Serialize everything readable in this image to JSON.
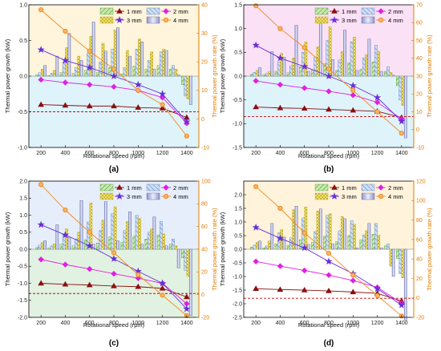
{
  "figure": {
    "shared": {
      "x_ticks": [
        200,
        400,
        600,
        800,
        1000,
        1200,
        1400
      ],
      "xlabel": "Rotational speed (rpm)",
      "ylabel_left": "Thermal power growth (kW)",
      "ylabel_right": "Thermal power growth rate (%)",
      "legend": [
        "1 mm",
        "2 mm",
        "3 mm",
        "4 mm"
      ],
      "colors": {
        "s1": "#8b1010",
        "s2": "#e020e0",
        "s3": "#6a2fd8",
        "s4": "#f08a1c",
        "axis_right": "#e07b00",
        "dash": "#d00000"
      }
    }
  },
  "chart_data": [
    {
      "type": "bar",
      "panel_label": "(a)",
      "x": [
        200,
        300,
        400,
        500,
        600,
        700,
        800,
        900,
        1000,
        1100,
        1200,
        1300,
        1400
      ],
      "ylim": [
        -1.0,
        1.0
      ],
      "y_ticks": [
        -1.0,
        -0.5,
        0.0,
        0.5,
        1.0
      ],
      "y2lim": [
        -10,
        40
      ],
      "y2_ticks": [
        -10,
        0,
        10,
        20,
        30,
        40
      ],
      "zero_rate_kw": -0.5,
      "bar_series": [
        {
          "name": "1 mm",
          "values": [
            0.02,
            0.01,
            0.05,
            0.04,
            0.08,
            0.05,
            0.12,
            0.03,
            0.14,
            0.1,
            0.15,
            0.1,
            -0.12
          ]
        },
        {
          "name": "2 mm",
          "values": [
            0.05,
            0.04,
            0.2,
            0.12,
            0.32,
            0.2,
            0.38,
            0.12,
            0.38,
            0.22,
            0.34,
            0.15,
            -0.28
          ]
        },
        {
          "name": "3 mm",
          "values": [
            0.1,
            0.08,
            0.4,
            0.28,
            0.56,
            0.46,
            0.65,
            0.36,
            0.52,
            0.34,
            0.38,
            0.1,
            -0.32
          ]
        },
        {
          "name": "4 mm",
          "values": [
            0.15,
            0.28,
            0.6,
            0.22,
            0.76,
            0.35,
            0.68,
            0.28,
            0.48,
            0.1,
            0.36,
            0.02,
            -0.4
          ]
        }
      ],
      "line_series": [
        {
          "name": "1 mm",
          "x": [
            200,
            400,
            600,
            800,
            1000,
            1200,
            1400
          ],
          "values": [
            -0.4,
            -0.41,
            -0.42,
            -0.42,
            -0.44,
            -0.45,
            -0.58
          ]
        },
        {
          "name": "2 mm",
          "x": [
            200,
            400,
            600,
            800,
            1000,
            1200,
            1400
          ],
          "values": [
            -0.05,
            -0.09,
            -0.12,
            -0.15,
            -0.2,
            -0.3,
            -0.66
          ]
        },
        {
          "name": "3 mm",
          "x": [
            200,
            400,
            600,
            800,
            1000,
            1200,
            1400
          ],
          "values": [
            0.37,
            0.22,
            0.12,
            0.0,
            -0.12,
            -0.25,
            -0.64
          ]
        },
        {
          "name": "4 mm",
          "x": [
            200,
            400,
            600,
            800,
            1000,
            1200,
            1400
          ],
          "values": [
            0.93,
            0.63,
            0.35,
            0.1,
            -0.2,
            -0.4,
            -0.84
          ]
        }
      ]
    },
    {
      "type": "bar",
      "panel_label": "(b)",
      "x": [
        200,
        300,
        400,
        500,
        600,
        700,
        800,
        900,
        1000,
        1100,
        1200,
        1300,
        1400
      ],
      "ylim": [
        -1.5,
        1.5
      ],
      "y_ticks": [
        -1.5,
        -1.0,
        -0.5,
        0.0,
        0.5,
        1.0,
        1.5
      ],
      "y2lim": [
        -10,
        70
      ],
      "y2_ticks": [
        -10,
        0,
        10,
        20,
        30,
        40,
        50,
        60,
        70
      ],
      "zero_rate_kw": -0.85,
      "bar_series": [
        {
          "name": "1 mm",
          "values": [
            0.04,
            0.03,
            0.1,
            0.07,
            0.2,
            0.12,
            0.26,
            0.12,
            0.28,
            0.14,
            0.3,
            0.1,
            -0.2
          ]
        },
        {
          "name": "2 mm",
          "values": [
            0.08,
            0.06,
            0.3,
            0.22,
            0.5,
            0.4,
            0.75,
            0.34,
            0.72,
            0.38,
            0.65,
            0.2,
            -0.5
          ]
        },
        {
          "name": "3 mm",
          "values": [
            0.12,
            0.1,
            0.48,
            0.38,
            0.72,
            0.62,
            1.04,
            0.52,
            0.82,
            0.45,
            0.52,
            0.08,
            -0.62
          ]
        },
        {
          "name": "4 mm",
          "values": [
            0.18,
            0.52,
            0.4,
            1.07,
            0.1,
            1.2,
            0.35,
            0.97,
            0.12,
            0.78,
            0.1,
            0.02,
            -1.3
          ]
        }
      ],
      "line_series": [
        {
          "name": "1 mm",
          "x": [
            200,
            400,
            600,
            800,
            1000,
            1200,
            1400
          ],
          "values": [
            -0.65,
            -0.67,
            -0.68,
            -0.7,
            -0.72,
            -0.74,
            -0.87
          ]
        },
        {
          "name": "2 mm",
          "x": [
            200,
            400,
            600,
            800,
            1000,
            1200,
            1400
          ],
          "values": [
            -0.1,
            -0.18,
            -0.25,
            -0.32,
            -0.4,
            -0.55,
            -0.9
          ]
        },
        {
          "name": "3 mm",
          "x": [
            200,
            400,
            600,
            800,
            1000,
            1200,
            1400
          ],
          "values": [
            0.65,
            0.38,
            0.2,
            0.0,
            -0.2,
            -0.45,
            -0.95
          ]
        },
        {
          "name": "4 mm",
          "x": [
            200,
            400,
            600,
            800,
            1000,
            1200,
            1400
          ],
          "values": [
            1.48,
            1.0,
            0.6,
            0.15,
            -0.3,
            -0.75,
            -1.2
          ]
        }
      ]
    },
    {
      "type": "bar",
      "panel_label": "(c)",
      "x": [
        200,
        300,
        400,
        500,
        600,
        700,
        800,
        900,
        1000,
        1100,
        1200,
        1300,
        1400
      ],
      "ylim": [
        -2.0,
        2.0
      ],
      "y_ticks": [
        -2.0,
        -1.5,
        -1.0,
        -0.5,
        0.0,
        0.5,
        1.0,
        1.5,
        2.0
      ],
      "y2lim": [
        -20,
        100
      ],
      "y2_ticks": [
        -20,
        0,
        20,
        40,
        60,
        80,
        100
      ],
      "zero_rate_kw": -1.3,
      "bar_series": [
        {
          "name": "1 mm",
          "values": [
            0.05,
            0.04,
            0.15,
            0.1,
            0.28,
            0.18,
            0.36,
            0.2,
            0.38,
            0.3,
            0.42,
            0.15,
            -0.25
          ]
        },
        {
          "name": "2 mm",
          "values": [
            0.12,
            0.1,
            0.42,
            0.3,
            0.8,
            0.55,
            1.05,
            0.55,
            1.0,
            0.5,
            0.82,
            0.3,
            -0.62
          ]
        },
        {
          "name": "3 mm",
          "values": [
            0.2,
            0.16,
            0.6,
            0.5,
            1.36,
            0.85,
            1.25,
            0.82,
            0.9,
            0.6,
            0.45,
            0.1,
            -0.8
          ]
        },
        {
          "name": "4 mm",
          "values": [
            0.25,
            0.72,
            0.35,
            1.43,
            0.15,
            1.4,
            0.25,
            1.1,
            0.15,
            0.95,
            0.1,
            -0.55,
            -1.95
          ]
        }
      ],
      "line_series": [
        {
          "name": "1 mm",
          "x": [
            200,
            400,
            600,
            800,
            1000,
            1200,
            1400
          ],
          "values": [
            -1.0,
            -1.03,
            -1.05,
            -1.08,
            -1.1,
            -1.15,
            -1.4
          ]
        },
        {
          "name": "2 mm",
          "x": [
            200,
            400,
            600,
            800,
            1000,
            1200,
            1400
          ],
          "values": [
            -0.3,
            -0.45,
            -0.58,
            -0.72,
            -0.85,
            -1.0,
            -1.6
          ]
        },
        {
          "name": "3 mm",
          "x": [
            200,
            400,
            600,
            800,
            1000,
            1200,
            1400
          ],
          "values": [
            0.72,
            0.42,
            0.1,
            -0.28,
            -0.65,
            -1.0,
            -1.75
          ]
        },
        {
          "name": "4 mm",
          "x": [
            200,
            400,
            600,
            800,
            1000,
            1200,
            1400
          ],
          "values": [
            1.9,
            1.15,
            0.5,
            -0.1,
            -0.75,
            -1.35,
            -1.95
          ]
        }
      ]
    },
    {
      "type": "bar",
      "panel_label": "(d)",
      "x": [
        200,
        300,
        400,
        500,
        600,
        700,
        800,
        900,
        1000,
        1100,
        1200,
        1300,
        1400
      ],
      "ylim": [
        -2.5,
        2.5
      ],
      "y_ticks": [
        -2.5,
        -2.0,
        -1.5,
        -1.0,
        -0.5,
        0.0,
        0.5,
        1.0,
        1.5,
        2.0
      ],
      "y2lim": [
        -20,
        120
      ],
      "y2_ticks": [
        -20,
        0,
        20,
        40,
        60,
        80,
        100,
        120
      ],
      "zero_rate_kw": -1.8,
      "bar_series": [
        {
          "name": "1 mm",
          "values": [
            0.08,
            0.05,
            0.2,
            0.15,
            0.35,
            0.25,
            0.48,
            0.28,
            0.5,
            0.35,
            0.55,
            0.12,
            -0.35
          ]
        },
        {
          "name": "2 mm",
          "values": [
            0.15,
            0.12,
            0.6,
            0.42,
            1.15,
            0.65,
            1.25,
            0.68,
            1.05,
            0.52,
            0.95,
            0.2,
            -0.9
          ]
        },
        {
          "name": "3 mm",
          "values": [
            0.25,
            0.3,
            0.72,
            1.45,
            1.55,
            1.4,
            1.3,
            1.2,
            0.92,
            0.68,
            0.52,
            -0.62,
            -1.05
          ]
        },
        {
          "name": "4 mm",
          "values": [
            0.3,
            0.95,
            0.45,
            1.58,
            0.18,
            1.48,
            0.2,
            1.12,
            0.05,
            0.95,
            0.05,
            -1.0,
            -2.6
          ]
        }
      ],
      "line_series": [
        {
          "name": "1 mm",
          "x": [
            200,
            400,
            600,
            800,
            1000,
            1200,
            1400
          ],
          "values": [
            -1.45,
            -1.48,
            -1.5,
            -1.53,
            -1.57,
            -1.62,
            -1.9
          ]
        },
        {
          "name": "2 mm",
          "x": [
            200,
            400,
            600,
            800,
            1000,
            1200,
            1400
          ],
          "values": [
            -0.45,
            -0.62,
            -0.78,
            -0.95,
            -1.15,
            -1.4,
            -1.98
          ]
        },
        {
          "name": "3 mm",
          "x": [
            200,
            400,
            600,
            800,
            1000,
            1200,
            1400
          ],
          "values": [
            0.8,
            0.4,
            0.05,
            -0.45,
            -0.9,
            -1.45,
            -2.05
          ]
        },
        {
          "name": "4 mm",
          "x": [
            200,
            400,
            600,
            800,
            1000,
            1200,
            1400
          ],
          "values": [
            2.3,
            1.5,
            0.6,
            -0.15,
            -0.95,
            -1.7,
            -2.45
          ]
        }
      ]
    }
  ]
}
